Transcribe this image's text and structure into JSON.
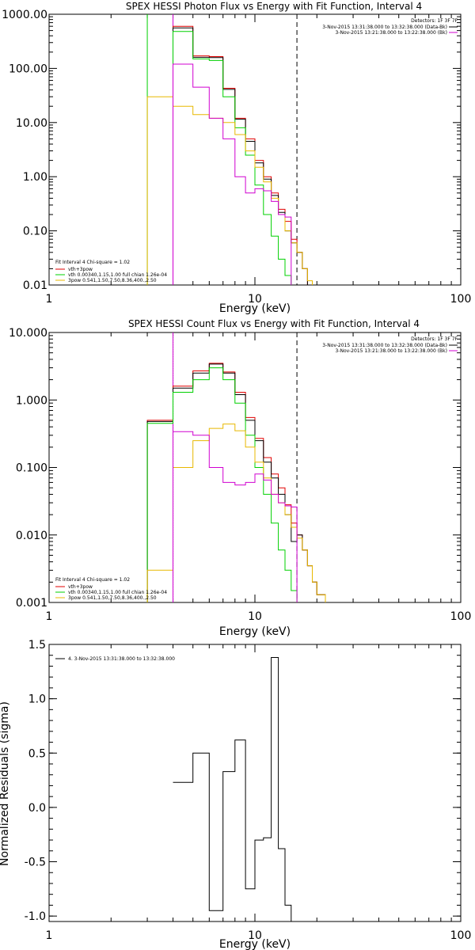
{
  "panels": [
    {
      "title": "SPEX HESSI Photon Flux vs Energy with Fit Function, Interval 4",
      "xlabel": "Energy (keV)",
      "ylabel": "",
      "xtick_labels": [
        "1",
        "10",
        "100"
      ],
      "ytick_labels": [
        "0.01",
        "0.10",
        "1.00",
        "10.00",
        "100.00",
        "1000.00"
      ],
      "detectors_label": "Detectors: 1F 3F 7F",
      "time_lines": [
        "3-Nov-2015 13:31:38.000 to 13:32:38.000 (Data-Bk)",
        "3-Nov-2015 13:21:38.000 to 13:22:38.000 (Bk)"
      ],
      "fit_lines": [
        "Fit Interval 4   Chi-square = 1.02",
        "vth+3pow",
        "vth 0.00340,1.15,1.00  full chian 1.26e-04",
        "3pow 0.541,1.50,7.50,8.36,400.,2.50"
      ]
    },
    {
      "title": "SPEX HESSI Count Flux vs Energy with Fit Function, Interval 4",
      "xlabel": "Energy (keV)",
      "ylabel": "",
      "xtick_labels": [
        "1",
        "10",
        "100"
      ],
      "ytick_labels": [
        "0.001",
        "0.010",
        "0.100",
        "1.000",
        "10.000"
      ],
      "detectors_label": "Detectors: 1F 3F 7F",
      "time_lines": [
        "3-Nov-2015 13:31:38.000 to 13:32:38.000 (Data-Bk)",
        "3-Nov-2015 13:21:38.000 to 13:22:38.000 (Bk)"
      ],
      "fit_lines": [
        "Fit Interval 4   Chi-square = 1.02",
        "vth+3pow",
        "vth 0.00340,1.15,1.00  full chian 1.26e-04",
        "3pow 0.541,1.50,7.50,8.36,400.,2.50"
      ]
    },
    {
      "title": "",
      "xlabel": "Energy (keV)",
      "ylabel": "Normalized Residuals (sigma)",
      "xtick_labels": [
        "1",
        "10",
        "100"
      ],
      "ytick_labels": [
        "-1.0",
        "-0.5",
        "0.0",
        "0.5",
        "1.0",
        "1.5"
      ],
      "legend_text": "4. 3-Nov-2015 13:31:38.000 to 13:32:38.000"
    }
  ],
  "colors": {
    "data": "#000000",
    "total_fit": "#e00000",
    "vth": "#00d000",
    "3pow": "#e8b800",
    "background": "#d000d0"
  },
  "chart_data": [
    {
      "type": "line",
      "title": "SPEX HESSI Photon Flux vs Energy with Fit Function, Interval 4",
      "xlabel": "Energy (keV)",
      "xscale": "log",
      "yscale": "log",
      "xlim": [
        1,
        100
      ],
      "ylim": [
        0.01,
        1000
      ],
      "edges": [
        3,
        4,
        5,
        6,
        7,
        8,
        9,
        10,
        11,
        12,
        13,
        14,
        15,
        16,
        17,
        18,
        19,
        20,
        22
      ],
      "series": [
        {
          "name": "vth+3pow",
          "color": "#e00000",
          "values": [
            null,
            600,
            170,
            165,
            43,
            12,
            5,
            2.0,
            1.0,
            0.5,
            0.25,
            0.15,
            0.07,
            0.04,
            0.02,
            null,
            null,
            null
          ]
        },
        {
          "name": "",
          "color": "#000000",
          "values": [
            null,
            560,
            160,
            158,
            41,
            11.5,
            4.5,
            1.8,
            0.9,
            0.45,
            0.22,
            0.1,
            0.06,
            0.04,
            0.02,
            null,
            null,
            null
          ]
        },
        {
          "name": "vth",
          "color": "#00d000",
          "values": [
            null,
            480,
            150,
            140,
            30,
            8,
            2.5,
            0.7,
            0.2,
            0.08,
            0.03,
            0.015,
            null,
            null,
            null,
            null,
            null,
            null
          ]
        },
        {
          "name": "3pow",
          "color": "#e8b800",
          "values": [
            30,
            20,
            14,
            12,
            10,
            6,
            3,
            1.5,
            0.8,
            0.4,
            0.2,
            0.1,
            0.06,
            0.04,
            0.02,
            0.012,
            null,
            null
          ]
        },
        {
          "name": "",
          "color": "#d000d0",
          "values": [
            null,
            120,
            45,
            12,
            5,
            1.0,
            0.5,
            0.6,
            0.55,
            0.35,
            0.2,
            0.18,
            null,
            null,
            null,
            null,
            null,
            null
          ]
        }
      ],
      "vlines": [
        {
          "x": 3,
          "color": "#00d000",
          "style": "solid"
        },
        {
          "x": 4,
          "color": "#d000d0",
          "style": "solid"
        },
        {
          "x": 16,
          "color": "#000000",
          "style": "dashed"
        }
      ]
    },
    {
      "type": "line",
      "title": "SPEX HESSI Count Flux vs Energy with Fit Function, Interval 4",
      "xlabel": "Energy (keV)",
      "xscale": "log",
      "yscale": "log",
      "xlim": [
        1,
        100
      ],
      "ylim": [
        0.001,
        10
      ],
      "edges": [
        3,
        4,
        5,
        6,
        7,
        8,
        9,
        10,
        11,
        12,
        13,
        14,
        15,
        16,
        17,
        18,
        19,
        20,
        22
      ],
      "series": [
        {
          "name": "vth+3pow",
          "color": "#e00000",
          "values": [
            0.5,
            1.6,
            2.7,
            3.5,
            2.6,
            1.3,
            0.55,
            0.27,
            0.14,
            0.08,
            0.05,
            0.028,
            0.015,
            0.01,
            0.006,
            0.0035,
            0.002,
            0.0013
          ]
        },
        {
          "name": "",
          "color": "#000000",
          "values": [
            0.48,
            1.5,
            2.5,
            3.4,
            2.5,
            1.2,
            0.5,
            0.25,
            0.12,
            0.07,
            0.04,
            0.02,
            0.008,
            0.01,
            0.006,
            0.0035,
            0.002,
            0.0013
          ]
        },
        {
          "name": "vth",
          "color": "#00d000",
          "values": [
            0.45,
            1.3,
            2.0,
            3.0,
            2.0,
            0.9,
            0.3,
            0.1,
            0.04,
            0.015,
            0.006,
            0.003,
            0.0015,
            null,
            null,
            null,
            null,
            null
          ]
        },
        {
          "name": "3pow",
          "color": "#e8b800",
          "values": [
            0.003,
            0.1,
            0.25,
            0.38,
            0.44,
            0.35,
            0.2,
            0.12,
            0.07,
            0.04,
            0.03,
            0.02,
            0.013,
            0.009,
            0.006,
            0.0035,
            0.002,
            0.0013
          ]
        },
        {
          "name": "",
          "color": "#d000d0",
          "values": [
            null,
            0.34,
            0.3,
            0.1,
            0.06,
            0.055,
            0.06,
            0.08,
            0.065,
            0.04,
            0.03,
            0.027,
            0.026,
            null,
            null,
            null,
            null,
            null
          ]
        }
      ],
      "vlines": [
        {
          "x": 4,
          "color": "#000000",
          "style": "dotted"
        },
        {
          "x": 4,
          "color": "#d000d0",
          "style": "solid"
        },
        {
          "x": 16,
          "color": "#000000",
          "style": "dashed"
        }
      ]
    },
    {
      "type": "line",
      "xlabel": "Energy (keV)",
      "ylabel": "Normalized Residuals (sigma)",
      "xscale": "log",
      "xlim": [
        1,
        100
      ],
      "ylim": [
        -1.05,
        1.5
      ],
      "edges": [
        4,
        5,
        6,
        7,
        8,
        9,
        10,
        11,
        12,
        13,
        14,
        15,
        16
      ],
      "series": [
        {
          "name": "4. 3-Nov-2015 13:31:38.000 to 13:32:38.000",
          "color": "#000000",
          "values": [
            0.23,
            0.5,
            -0.95,
            0.33,
            0.62,
            -0.75,
            -0.3,
            -0.28,
            1.38,
            -0.38,
            -0.9,
            -1.05
          ]
        }
      ]
    }
  ]
}
